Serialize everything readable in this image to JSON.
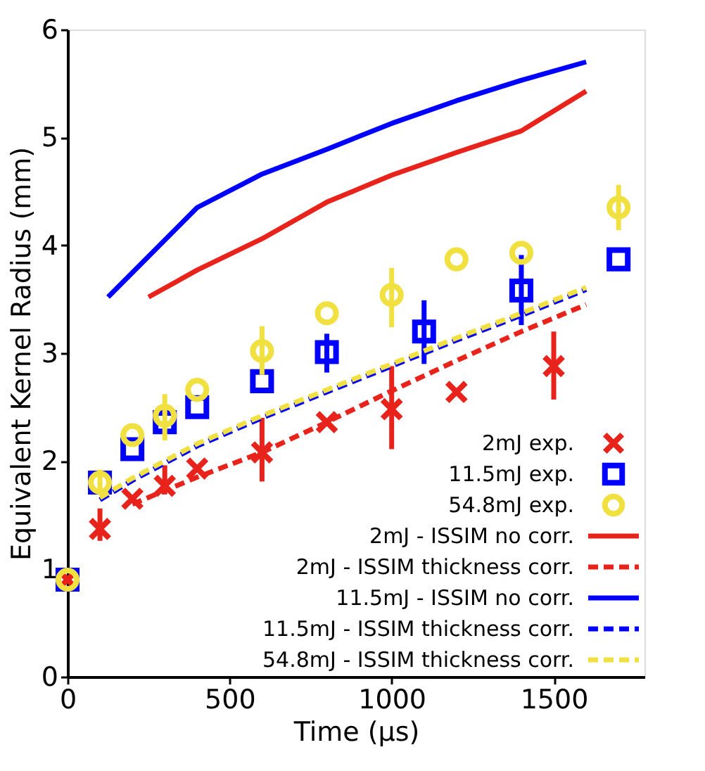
{
  "chart_data": {
    "type": "scatter",
    "xlabel": "Time (µs)",
    "ylabel": "Equivalent Kernel Radius (mm)",
    "xlim": [
      0,
      1780
    ],
    "ylim": [
      0,
      6
    ],
    "xticks": [
      0,
      500,
      1000,
      1500
    ],
    "yticks": [
      0,
      1,
      2,
      3,
      4,
      5,
      6
    ],
    "grid": false,
    "legend": "bottom right",
    "series": [
      {
        "name": "2mJ exp.",
        "marker": "cross",
        "color": "#e8231b",
        "x": [
          0,
          100,
          200,
          300,
          400,
          600,
          800,
          1000,
          1200,
          1500
        ],
        "values": [
          0.9,
          1.37,
          1.65,
          1.77,
          1.93,
          2.08,
          2.36,
          2.48,
          2.64,
          2.88
        ],
        "errors": [
          null,
          [
            1.26,
            1.56
          ],
          null,
          [
            1.69,
            1.96
          ],
          null,
          [
            1.81,
            2.4
          ],
          null,
          [
            2.11,
            2.88
          ],
          null,
          [
            2.57,
            3.2
          ]
        ]
      },
      {
        "name": "11.5mJ exp.",
        "marker": "square",
        "color": "#0000ff",
        "x": [
          0,
          100,
          200,
          300,
          400,
          600,
          800,
          1100,
          1400,
          1700
        ],
        "values": [
          0.9,
          1.8,
          2.11,
          2.36,
          2.5,
          2.74,
          3.01,
          3.2,
          3.58,
          3.87
        ],
        "errors": [
          null,
          null,
          null,
          null,
          null,
          null,
          [
            2.82,
            3.18
          ],
          [
            2.9,
            3.49
          ],
          [
            3.26,
            3.91
          ],
          null
        ]
      },
      {
        "name": "54.8mJ exp.",
        "marker": "circle",
        "color": "#f0e040",
        "x": [
          0,
          100,
          200,
          300,
          400,
          600,
          800,
          1000,
          1200,
          1400,
          1700
        ],
        "values": [
          0.9,
          1.8,
          2.24,
          2.42,
          2.66,
          3.02,
          3.37,
          3.54,
          3.87,
          3.93,
          4.35
        ],
        "errors": [
          null,
          [
            1.7,
            1.92
          ],
          null,
          [
            2.19,
            2.62
          ],
          null,
          [
            2.8,
            3.25
          ],
          null,
          [
            3.24,
            3.79
          ],
          null,
          null,
          [
            4.14,
            4.56
          ]
        ]
      },
      {
        "name": "2mJ - ISSIM no corr.",
        "type": "line",
        "line_style": "solid",
        "color": "#e8231b",
        "x": [
          250,
          400,
          600,
          800,
          1000,
          1200,
          1400,
          1600
        ],
        "values": [
          3.52,
          3.77,
          4.06,
          4.4,
          4.65,
          4.86,
          5.06,
          5.43
        ]
      },
      {
        "name": "2mJ - ISSIM thickness corr.",
        "type": "line",
        "line_style": "dashed",
        "color": "#e8231b",
        "x": [
          200,
          400,
          600,
          800,
          1000,
          1200,
          1400,
          1600
        ],
        "values": [
          1.6,
          1.85,
          2.08,
          2.36,
          2.65,
          2.93,
          3.2,
          3.45
        ]
      },
      {
        "name": "11.5mJ - ISSIM no corr.",
        "type": "line",
        "line_style": "solid",
        "color": "#0000ff",
        "x": [
          125,
          400,
          600,
          800,
          1000,
          1200,
          1400,
          1600
        ],
        "values": [
          3.52,
          4.35,
          4.66,
          4.89,
          5.13,
          5.34,
          5.53,
          5.7
        ]
      },
      {
        "name": "11.5mJ - ISSIM thickness corr.",
        "type": "line",
        "line_style": "dashed",
        "color": "#0000ff",
        "x": [
          100,
          200,
          400,
          600,
          800,
          1000,
          1200,
          1400,
          1600
        ],
        "values": [
          1.64,
          1.82,
          2.14,
          2.4,
          2.64,
          2.88,
          3.12,
          3.35,
          3.59
        ]
      },
      {
        "name": "54.8mJ - ISSIM thickness corr.",
        "type": "line",
        "line_style": "dashed",
        "color": "#f0e040",
        "x": [
          100,
          200,
          400,
          600,
          800,
          1000,
          1200,
          1400,
          1600
        ],
        "values": [
          1.66,
          1.84,
          2.16,
          2.42,
          2.66,
          2.9,
          3.14,
          3.37,
          3.61
        ]
      }
    ]
  }
}
